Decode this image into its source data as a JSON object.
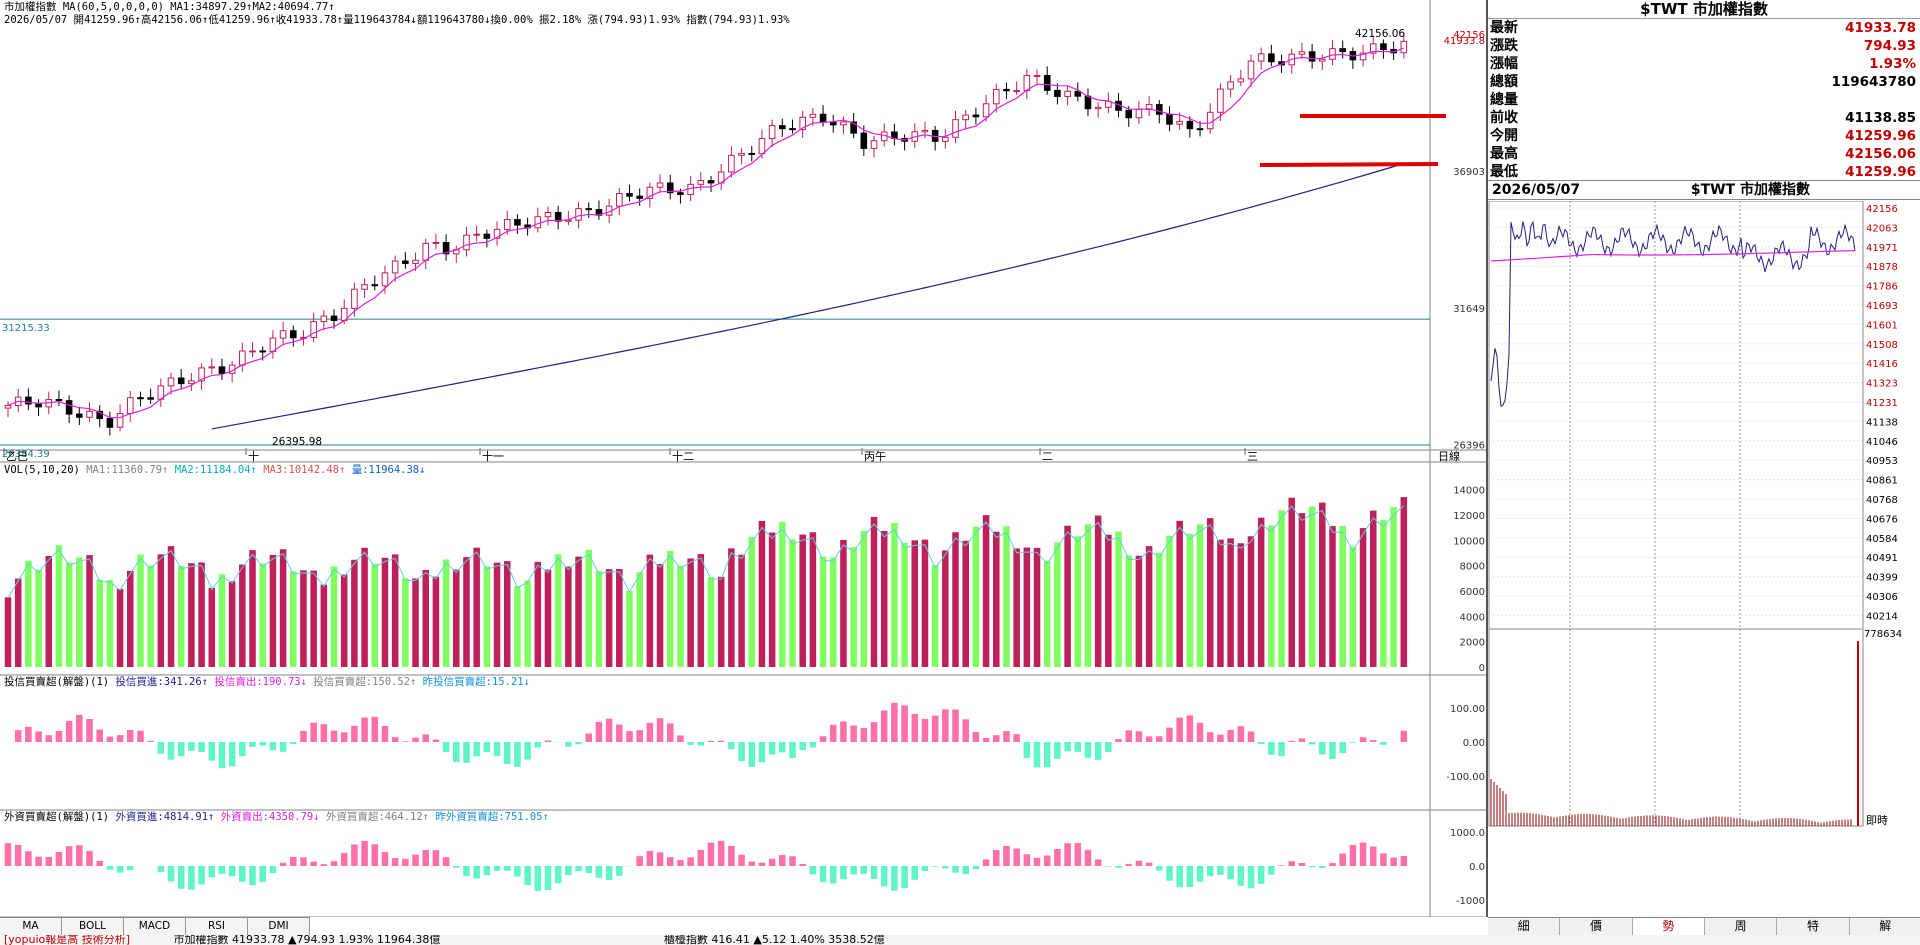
{
  "main": {
    "title_line": "市加權指數  MA(60,5,0,0,0,0)  MA1:34897.29↑MA2:40694.77↑",
    "ohlc_line": "2026/05/07 開41259.96↑高42156.06↑低41259.96↑收41933.78↑量119643784↓額119643780↓換0.00% 振2.18% 漲(794.93)1.93% 指數(794.93)1.93%",
    "price_labels": [
      "42156",
      "41933.8",
      "36903",
      "31649",
      "26396"
    ],
    "hi_label": "42156.06",
    "lo_label": "26395.98",
    "hline_labels": [
      "31215.33",
      "26384.39"
    ],
    "month_labels": [
      "乙巳",
      "十",
      "十一",
      "十二",
      "丙午",
      "二",
      "三"
    ],
    "axis_unit": "日線"
  },
  "volume": {
    "title": "VOL(5,10,20)",
    "ma1": "MA1:11360.79↑",
    "ma2": "MA2:11184.04↑",
    "ma3": "MA3:10142.48↑",
    "vol": "量:11964.38↓",
    "ticks": [
      "14000",
      "12000",
      "10000",
      "8000",
      "6000",
      "4000",
      "2000",
      "0"
    ]
  },
  "trust": {
    "title": "投信買賣超(解盤)(1)",
    "buy": "投信買進:341.26↑",
    "sell": "投信賣出:190.73↓",
    "net": "投信買賣超:150.52↑",
    "prev": "昨投信買賣超:15.21↓",
    "ticks": [
      "100.00",
      "0.00",
      "-100.00"
    ]
  },
  "foreign": {
    "title": "外資買賣超(解盤)(1)",
    "buy": "外資買進:4814.91↑",
    "sell": "外資賣出:4350.79↓",
    "net": "外資買賣超:464.12↑",
    "prev": "昨外資買賣超:751.05↑",
    "ticks": [
      "1000.0",
      "0.0",
      "-1000"
    ]
  },
  "quote": {
    "header": "$TWT 市加權指數",
    "rows": [
      {
        "label": "最新",
        "value": "41933.78",
        "color": "red"
      },
      {
        "label": "漲跌",
        "value": "794.93",
        "color": "red"
      },
      {
        "label": "漲幅",
        "value": "1.93%",
        "color": "red"
      },
      {
        "label": "總額",
        "value": "119643780",
        "color": "black"
      },
      {
        "label": "總量",
        "value": "",
        "color": "black"
      },
      {
        "label": "前收",
        "value": "41138.85",
        "color": "black"
      },
      {
        "label": "今開",
        "value": "41259.96",
        "color": "red"
      },
      {
        "label": "最高",
        "value": "42156.06",
        "color": "red"
      },
      {
        "label": "最低",
        "value": "41259.96",
        "color": "red"
      }
    ]
  },
  "intraday": {
    "date": "2026/05/07",
    "title": "$TWT 市加權指數",
    "price_ticks": [
      "42156",
      "42063",
      "41971",
      "41878",
      "41786",
      "41693",
      "41601",
      "41508",
      "41416",
      "41323",
      "41231",
      "41138",
      "41046",
      "40953",
      "40861",
      "40768",
      "40676",
      "40584",
      "40491",
      "40399",
      "40306",
      "40214"
    ],
    "vol_label": "778634",
    "realtime_label": "即時"
  },
  "bottom_tabs_left": [
    "MA",
    "BOLL",
    "MACD",
    "RSI",
    "DMI"
  ],
  "bottom_tabs_right": [
    "細",
    "價",
    "勢",
    "周",
    "特",
    "解"
  ],
  "ticker_items": [
    "[yopuio報是高 技術分析]",
    "市加權指數 41933.78 ▲794.93 1.93% 11964.38億",
    "櫃檯指數 416.41 ▲5.12 1.40% 3538.52億"
  ],
  "colors": {
    "up": "#c0205a",
    "down": "#000000",
    "vol_up": "#c0205a",
    "vol_down": "#80ff60",
    "bar_pos": "#ff6fa8",
    "bar_neg": "#5ff5c8",
    "ma5": "#e020e0",
    "ma60": "#202080",
    "hline": "#208090",
    "redmark": "#e00000"
  }
}
